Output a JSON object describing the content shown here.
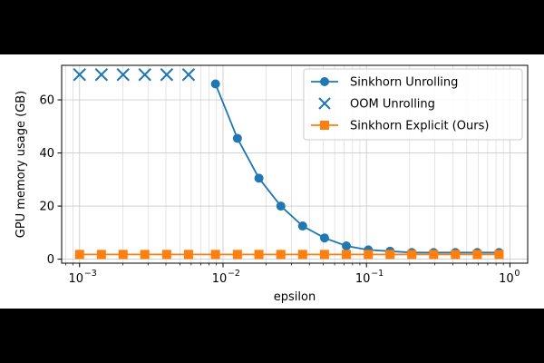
{
  "chart_data": {
    "type": "line",
    "xlabel": "epsilon",
    "ylabel": "GPU memory usage (GB)",
    "xscale": "log",
    "xlim": [
      0.00075,
      1.33
    ],
    "ylim": [
      -1.5,
      73
    ],
    "x_ticks": [
      0.001,
      0.01,
      0.1,
      1
    ],
    "x_tick_labels": [
      {
        "base": "10",
        "exp": "−3"
      },
      {
        "base": "10",
        "exp": "−2"
      },
      {
        "base": "10",
        "exp": "−1"
      },
      {
        "base": "10",
        "exp": "0"
      }
    ],
    "y_ticks": [
      0,
      20,
      40,
      60
    ],
    "y_tick_labels": [
      "0",
      "20",
      "40",
      "60"
    ],
    "grid": true,
    "legend_position": "top-right",
    "series": [
      {
        "name": "Sinkhorn Unrolling",
        "marker": "circle",
        "color": "#1f77b4",
        "line": true,
        "x": [
          0.00886,
          0.0126,
          0.0178,
          0.0253,
          0.0359,
          0.051,
          0.0724,
          0.103,
          0.146,
          0.207,
          0.294,
          0.417,
          0.592,
          0.84
        ],
        "y": [
          66,
          45.5,
          30.5,
          20,
          12.5,
          8,
          5,
          3.5,
          3,
          2.5,
          2.5,
          2.5,
          2.5,
          2.5
        ]
      },
      {
        "name": "OOM Unrolling",
        "marker": "x",
        "color": "#1f77b4",
        "line": false,
        "x": [
          0.001,
          0.00142,
          0.00201,
          0.00285,
          0.00405,
          0.00575
        ],
        "y": [
          69.5,
          69.5,
          69.5,
          69.5,
          69.5,
          69.5
        ]
      },
      {
        "name": "Sinkhorn Explicit (Ours)",
        "marker": "square",
        "color": "#ff7f0e",
        "line": true,
        "x": [
          0.001,
          0.00142,
          0.00201,
          0.00285,
          0.00405,
          0.00575,
          0.00886,
          0.0126,
          0.0178,
          0.0253,
          0.0359,
          0.051,
          0.0724,
          0.103,
          0.146,
          0.207,
          0.294,
          0.417,
          0.592,
          0.84
        ],
        "y": [
          1.8,
          1.8,
          1.8,
          1.8,
          1.8,
          1.8,
          1.8,
          1.8,
          1.8,
          1.8,
          1.8,
          1.8,
          1.8,
          1.8,
          1.8,
          1.8,
          1.8,
          1.8,
          1.8,
          1.8
        ]
      }
    ]
  }
}
